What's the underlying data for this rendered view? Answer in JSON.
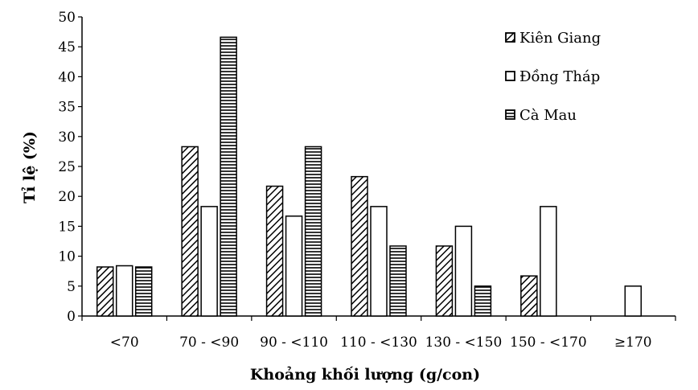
{
  "chart_data": {
    "type": "bar",
    "title": "",
    "xlabel": "Khoảng khối lượng (g/con)",
    "ylabel": "Tỉ lệ (%)",
    "ylim": [
      0,
      50
    ],
    "yticks": [
      0,
      5,
      10,
      15,
      20,
      25,
      30,
      35,
      40,
      45,
      50
    ],
    "categories": [
      "<70",
      "70 - <90",
      "90 - <110",
      "110 - <130",
      "130 - <150",
      "150 - <170",
      "≥170"
    ],
    "series": [
      {
        "name": "Kiên Giang",
        "pattern": "diagonal",
        "values": [
          8.2,
          28.3,
          21.7,
          23.3,
          11.7,
          6.7,
          0
        ]
      },
      {
        "name": "Đồng Tháp",
        "pattern": "empty",
        "values": [
          8.4,
          18.3,
          16.7,
          18.3,
          15.0,
          18.3,
          5.0
        ]
      },
      {
        "name": "Cà Mau",
        "pattern": "horizontal",
        "values": [
          8.2,
          46.6,
          28.3,
          11.7,
          5.0,
          0,
          0
        ]
      }
    ],
    "legend_position": "top-right",
    "grid": false
  }
}
